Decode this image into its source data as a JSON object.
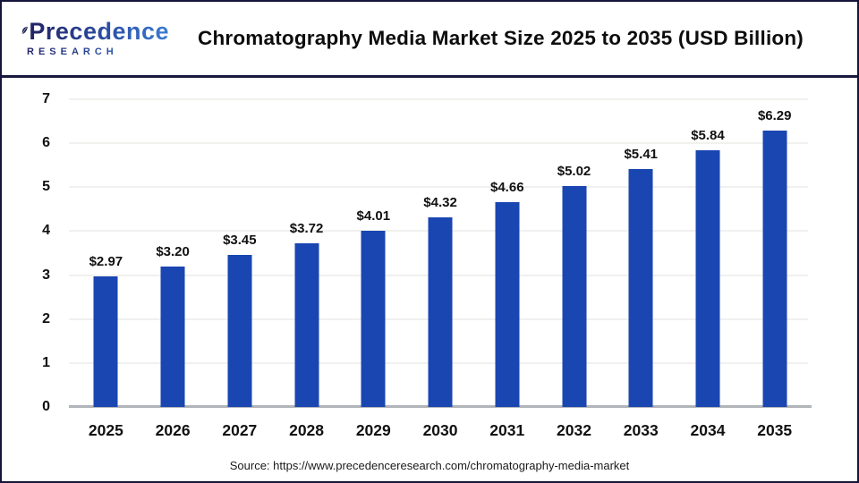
{
  "header": {
    "logo": {
      "name": "Precedence",
      "subtitle": "RESEARCH"
    },
    "title": "Chromatography Media Market Size 2025 to 2035 (USD Billion)"
  },
  "chart_data": {
    "type": "bar",
    "title": "Chromatography Media Market Size 2025 to 2035 (USD Billion)",
    "categories": [
      "2025",
      "2026",
      "2027",
      "2028",
      "2029",
      "2030",
      "2031",
      "2032",
      "2033",
      "2034",
      "2035"
    ],
    "values": [
      2.97,
      3.2,
      3.45,
      3.72,
      4.01,
      4.32,
      4.66,
      5.02,
      5.41,
      5.84,
      6.29
    ],
    "bar_labels": [
      "$2.97",
      "$3.20",
      "$3.45",
      "$3.72",
      "$4.01",
      "$4.32",
      "$4.66",
      "$5.02",
      "$5.41",
      "$5.84",
      "$6.29"
    ],
    "xlabel": "",
    "ylabel": "",
    "ylim": [
      0,
      7
    ],
    "yticks": [
      0,
      1,
      2,
      3,
      4,
      5,
      6,
      7
    ],
    "grid": true,
    "legend": false,
    "bar_color": "#1a46b2"
  },
  "footer": {
    "source": "Source: https://www.precedenceresearch.com/chromatography-media-market"
  },
  "colors": {
    "bar": "#1a46b2",
    "border": "#15153c",
    "divider": "#18183f",
    "gridline": "#f0f0ee",
    "baseline": "#b1b4b9",
    "logo_dark": "#232265",
    "logo_light": "#3a7bd5"
  }
}
